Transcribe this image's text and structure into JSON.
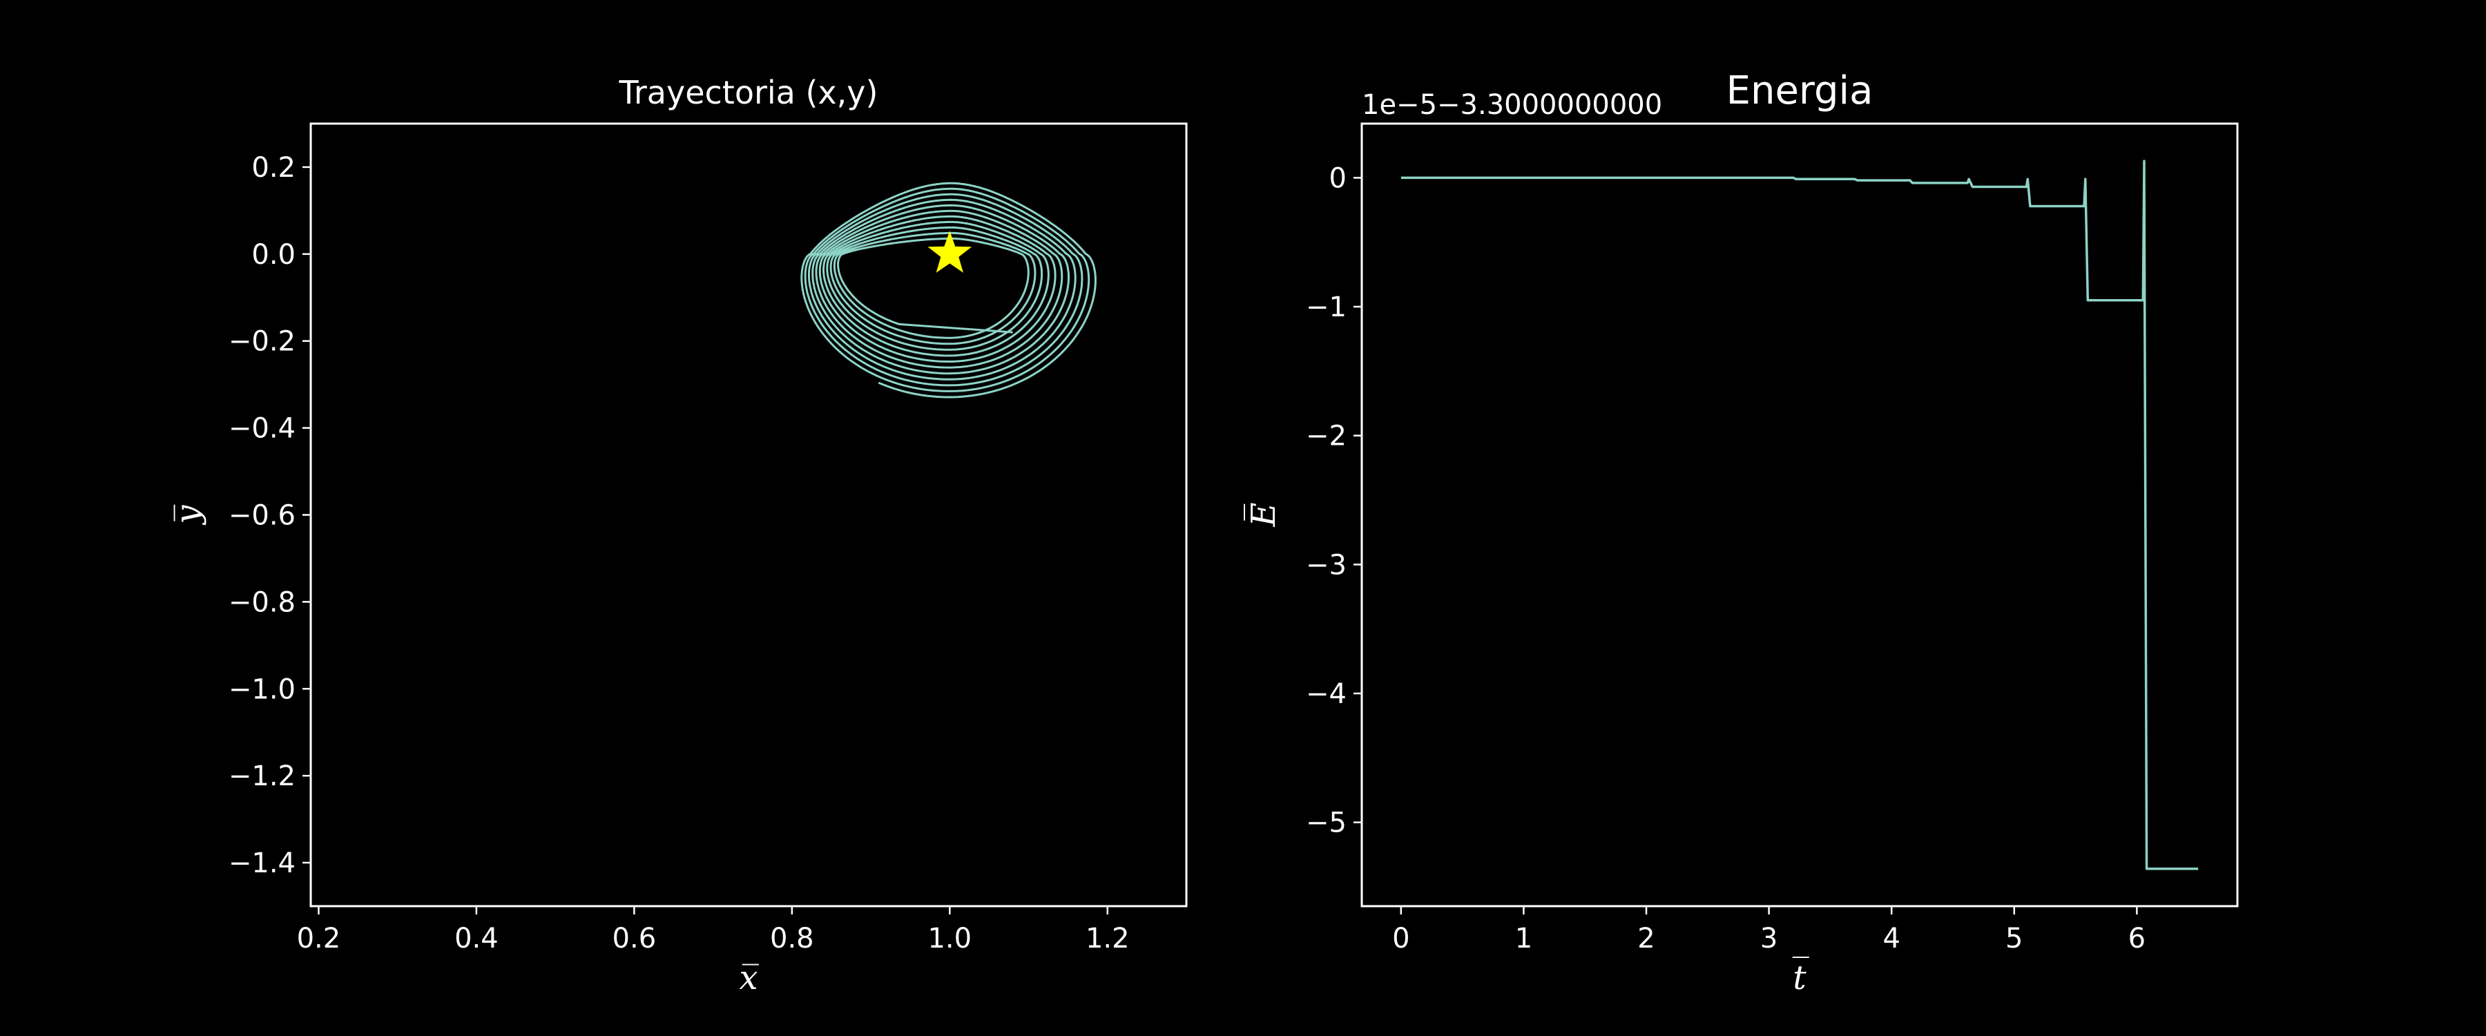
{
  "figure": {
    "background": "#000000",
    "foreground": "#ffffff",
    "line_color": "#8dd3c7",
    "marker_color": "#ffff00"
  },
  "chart_data": [
    {
      "type": "line",
      "title": "Trayectoria (x,y)",
      "xlabel": "x̅",
      "ylabel": "y̅",
      "xlim": [
        0.19,
        1.3
      ],
      "ylim": [
        -1.5,
        0.3
      ],
      "xticks": [
        0.2,
        0.4,
        0.6,
        0.8,
        1.0,
        1.2
      ],
      "xtick_labels": [
        "0.2",
        "0.4",
        "0.6",
        "0.8",
        "1.0",
        "1.2"
      ],
      "yticks": [
        0.2,
        0.0,
        -0.2,
        -0.4,
        -0.6,
        -0.8,
        -1.0,
        -1.2,
        -1.4
      ],
      "ytick_labels": [
        "0.2",
        "0.0",
        "−0.2",
        "−0.4",
        "−0.6",
        "−0.8",
        "−1.0",
        "−1.2",
        "−1.4"
      ],
      "series": [
        {
          "kind": "precessing-orbit",
          "center_x": 1.0,
          "loops": 11,
          "top_y": [
            0.17,
            0.03
          ],
          "bottom_y": [
            -0.33,
            -0.18
          ],
          "left_x": [
            0.82,
            0.865
          ],
          "right_x": [
            1.175,
            1.085
          ],
          "end_point": [
            1.08,
            -0.18
          ],
          "color": "#8dd3c7"
        },
        {
          "kind": "marker",
          "marker": "star",
          "x": 1.0,
          "y": 0.0,
          "color": "#ffff00"
        }
      ]
    },
    {
      "type": "line",
      "title": "Energia",
      "offset_label": "1e−5−3.3000000000",
      "xlabel": "t̅",
      "ylabel": "E̅",
      "xlim": [
        -0.32,
        6.82
      ],
      "ylim": [
        -5.65,
        0.42
      ],
      "xticks": [
        0,
        1,
        2,
        3,
        4,
        5,
        6
      ],
      "xtick_labels": [
        "0",
        "1",
        "2",
        "3",
        "4",
        "5",
        "6"
      ],
      "yticks": [
        0,
        -1,
        -2,
        -3,
        -4,
        -5
      ],
      "ytick_labels": [
        "0",
        "−1",
        "−2",
        "−3",
        "−4",
        "−5"
      ],
      "series": [
        {
          "color": "#8dd3c7",
          "points": [
            [
              0,
              0
            ],
            [
              3.2,
              0
            ],
            [
              3.22,
              -0.01
            ],
            [
              3.7,
              -0.01
            ],
            [
              3.72,
              -0.02
            ],
            [
              4.15,
              -0.02
            ],
            [
              4.17,
              -0.04
            ],
            [
              4.62,
              -0.04
            ],
            [
              4.63,
              -0.01
            ],
            [
              4.66,
              -0.07
            ],
            [
              5.1,
              -0.07
            ],
            [
              5.11,
              -0.01
            ],
            [
              5.13,
              -0.22
            ],
            [
              5.57,
              -0.22
            ],
            [
              5.58,
              -0.01
            ],
            [
              5.6,
              -0.95
            ],
            [
              6.05,
              -0.95
            ],
            [
              6.06,
              0.13
            ],
            [
              6.08,
              -5.36
            ],
            [
              6.5,
              -5.36
            ]
          ]
        }
      ]
    }
  ]
}
